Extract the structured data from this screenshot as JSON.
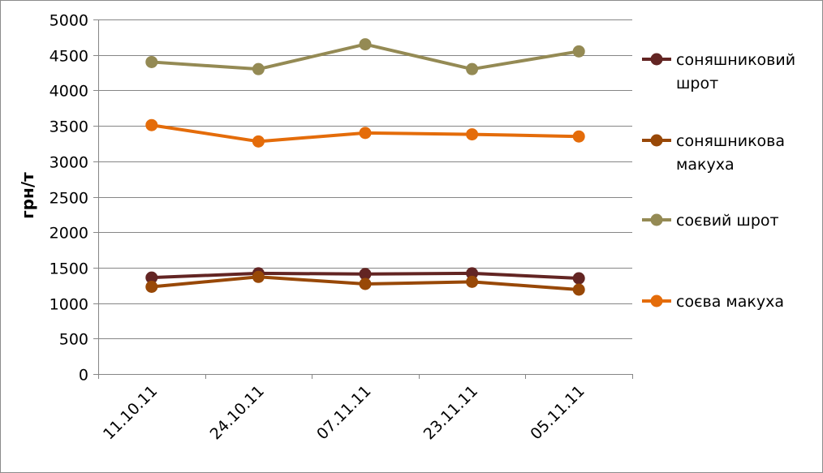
{
  "chart_data": {
    "type": "line",
    "title": "",
    "xlabel": "",
    "ylabel": "грн/т",
    "ylim": [
      0,
      5000
    ],
    "yticks": [
      0,
      500,
      1000,
      1500,
      2000,
      2500,
      3000,
      3500,
      4000,
      4500,
      5000
    ],
    "grid": true,
    "legend_position": "right",
    "categories": [
      "11.10.11",
      "24.10.11",
      "07.11.11",
      "23.11.11",
      "05.11.11"
    ],
    "series": [
      {
        "name": "соняшниковий шрот",
        "legend_lines": [
          "соняшниковий",
          "шрот"
        ],
        "color": "#632523",
        "values": [
          1360,
          1420,
          1410,
          1420,
          1350
        ]
      },
      {
        "name": "соняшникова макуха",
        "legend_lines": [
          "соняшникова",
          "макуха"
        ],
        "color": "#984807",
        "values": [
          1230,
          1370,
          1270,
          1300,
          1190
        ]
      },
      {
        "name": "соєвий шрот",
        "legend_lines": [
          "соєвий шрот"
        ],
        "color": "#948a54",
        "values": [
          4400,
          4300,
          4650,
          4300,
          4550
        ]
      },
      {
        "name": "соєва макуха",
        "legend_lines": [
          "соєва макуха"
        ],
        "color": "#e46c0a",
        "values": [
          3510,
          3280,
          3400,
          3380,
          3350
        ]
      }
    ]
  }
}
